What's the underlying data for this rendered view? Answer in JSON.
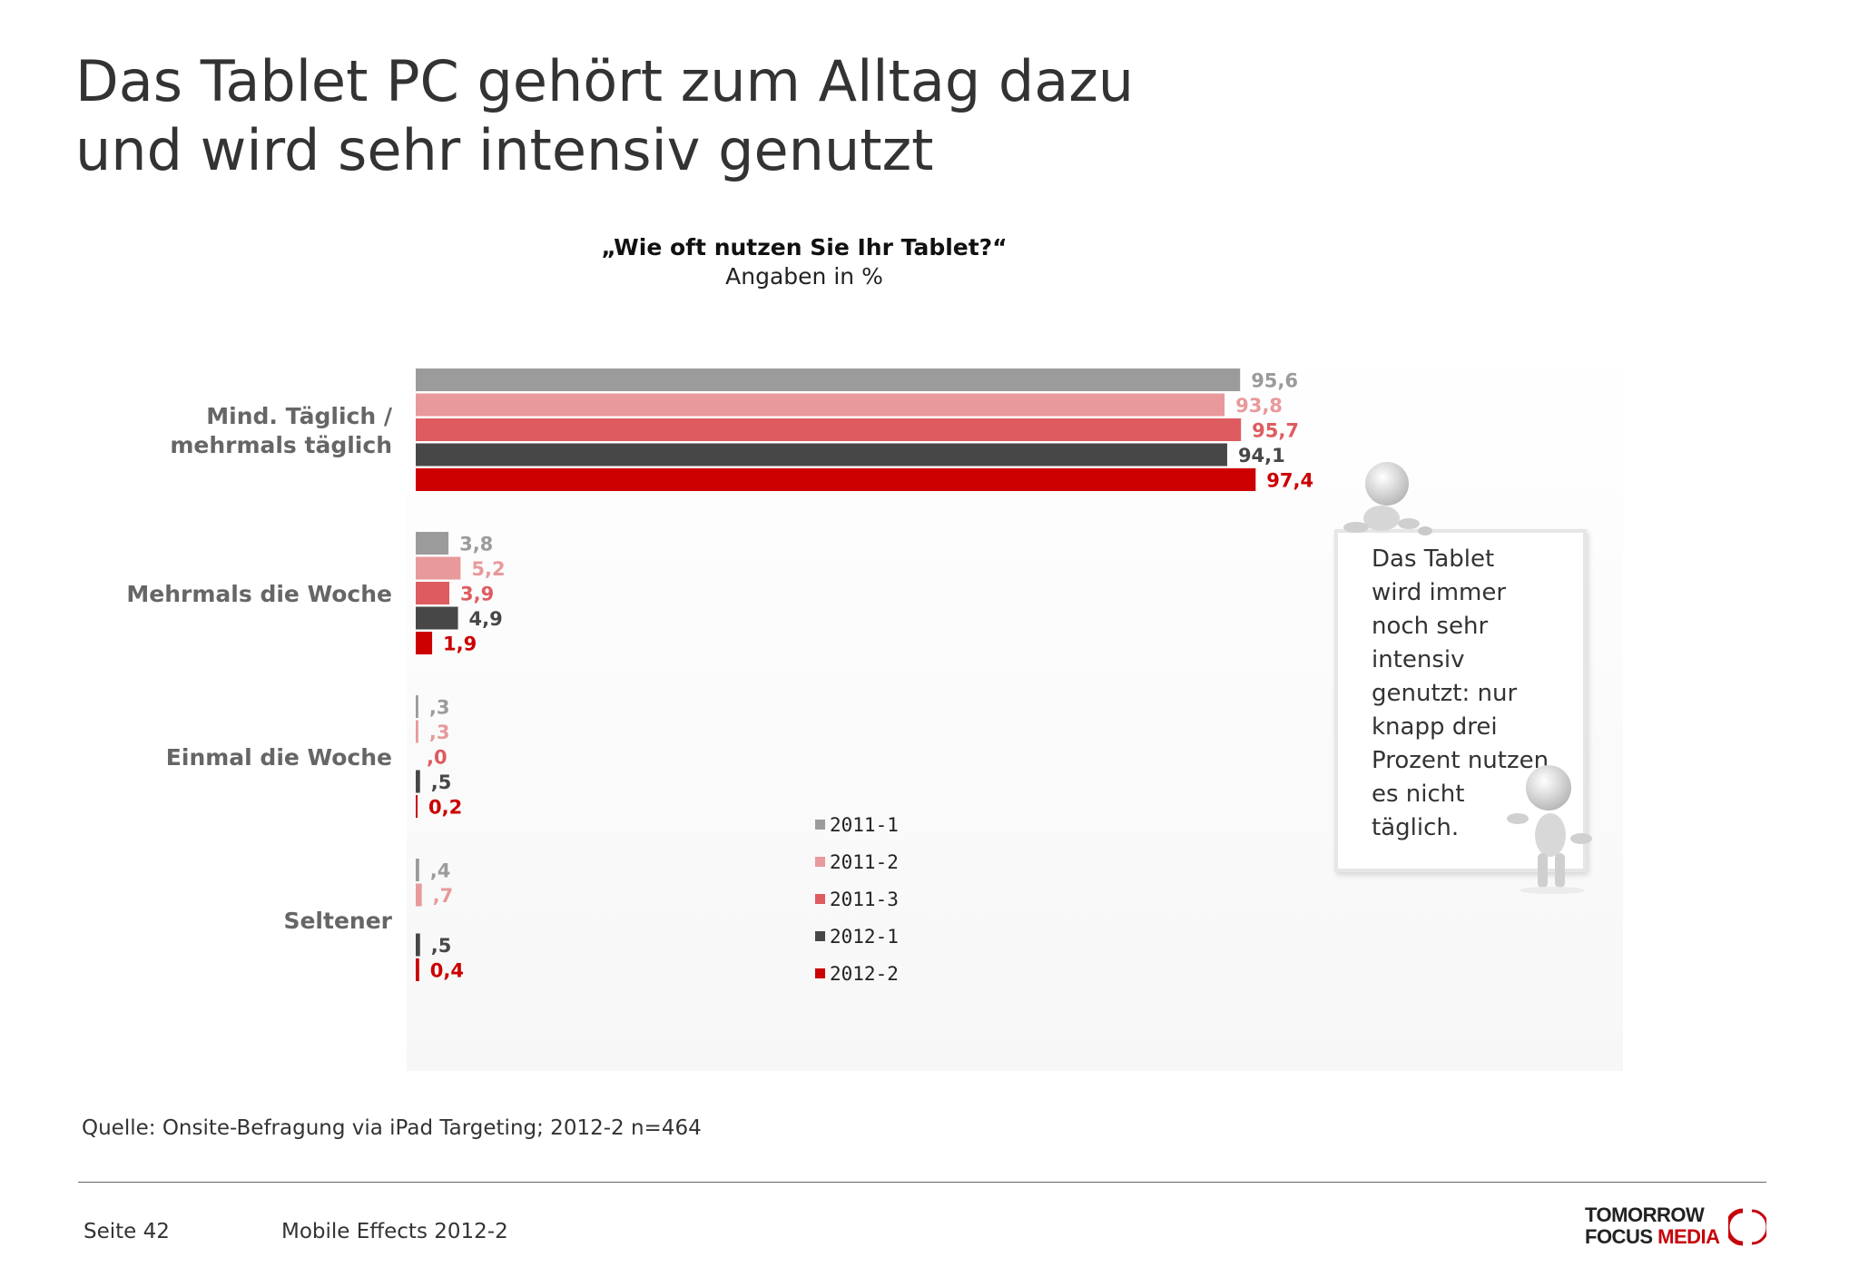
{
  "title": {
    "line1": "Das Tablet PC gehört zum Alltag dazu",
    "line2": "und wird sehr intensiv genutzt"
  },
  "chart_data": {
    "type": "bar",
    "orientation": "horizontal",
    "title": "„Wie oft nutzen Sie Ihr Tablet?“",
    "subtitle": "Angaben in %",
    "categories": [
      "Mind. Täglich / mehrmals täglich",
      "Mehrmals die Woche",
      "Einmal die Woche",
      "Seltener"
    ],
    "series": [
      {
        "name": "2011-1",
        "color": "#9b9b9b",
        "values": [
          95.6,
          3.8,
          0.3,
          0.4
        ],
        "labels": [
          "95,6",
          "3,8",
          ",3",
          ",4"
        ]
      },
      {
        "name": "2011-2",
        "color": "#e8999b",
        "values": [
          93.8,
          5.2,
          0.3,
          0.7
        ],
        "labels": [
          "93,8",
          "5,2",
          ",3",
          ",7"
        ]
      },
      {
        "name": "2011-3",
        "color": "#de5c5f",
        "values": [
          95.7,
          3.9,
          0.0,
          0.0
        ],
        "labels": [
          "95,7",
          "3,9",
          ",0",
          ""
        ]
      },
      {
        "name": "2012-1",
        "color": "#474747",
        "values": [
          94.1,
          4.9,
          0.5,
          0.5
        ],
        "labels": [
          "94,1",
          "4,9",
          ",5",
          ",5"
        ]
      },
      {
        "name": "2012-2",
        "color": "#cc0000",
        "values": [
          97.4,
          1.9,
          0.2,
          0.4
        ],
        "labels": [
          "97,4",
          "1,9",
          "0,2",
          "0,4"
        ]
      }
    ],
    "xlim": [
      0,
      100
    ],
    "grid": false,
    "axis_visible": false,
    "legend_position": "center-bottom"
  },
  "callout": {
    "lines": [
      "Das Tablet",
      "wird immer",
      "noch sehr",
      "intensiv",
      "genutzt: nur",
      "knapp drei",
      "Prozent nutzen",
      "es nicht",
      "täglich."
    ]
  },
  "source": "Quelle: Onsite-Befragung via iPad Targeting; 2012-2 n=464",
  "footer": {
    "page": "Seite 42",
    "title": "Mobile Effects 2012-2"
  },
  "logo": {
    "line1": "TOMORROW",
    "line2_a": "FOCUS",
    "line2_b": "MEDIA",
    "accent_color": "#c8000a"
  }
}
